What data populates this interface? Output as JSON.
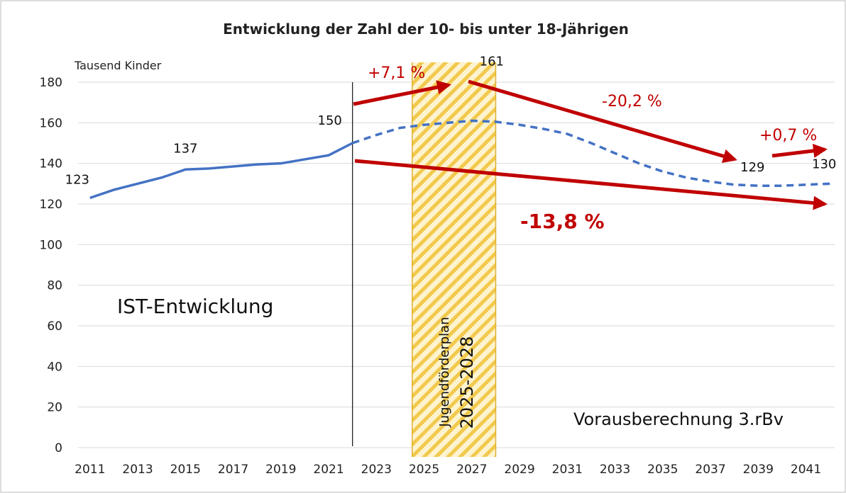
{
  "chart_data": {
    "type": "line",
    "title": "Entwicklung der Zahl der 10- bis unter 18-Jährigen",
    "y_axis_label": "Tausend Kinder",
    "x": [
      2011,
      2012,
      2013,
      2014,
      2015,
      2016,
      2017,
      2018,
      2019,
      2020,
      2021,
      2022,
      2023,
      2024,
      2025,
      2026,
      2027,
      2028,
      2029,
      2030,
      2031,
      2032,
      2033,
      2034,
      2035,
      2036,
      2037,
      2038,
      2039,
      2040,
      2041,
      2042
    ],
    "series": [
      {
        "name": "IST-Entwicklung",
        "color": "#4472c4",
        "line_style": "solid",
        "values": [
          123,
          127,
          130,
          133,
          137,
          137.5,
          138.5,
          139.5,
          140,
          142,
          144,
          150,
          null,
          null,
          null,
          null,
          null,
          null,
          null,
          null,
          null,
          null,
          null,
          null,
          null,
          null,
          null,
          null,
          null,
          null,
          null,
          null
        ]
      },
      {
        "name": "Vorausberechnung 3.rBv",
        "color": "#4472c4",
        "line_style": "dashed",
        "values": [
          null,
          null,
          null,
          null,
          null,
          null,
          null,
          null,
          null,
          null,
          null,
          150,
          154,
          157.5,
          159,
          160,
          161,
          160.5,
          159,
          157,
          154.5,
          150,
          145,
          140,
          136,
          133,
          131,
          129.5,
          129,
          129,
          129.5,
          130
        ]
      }
    ],
    "xlim": [
      2010.5,
      2042.5
    ],
    "xticks": [
      2011,
      2013,
      2015,
      2017,
      2019,
      2021,
      2023,
      2025,
      2027,
      2029,
      2031,
      2033,
      2035,
      2037,
      2039,
      2041
    ],
    "ylim": [
      0,
      180
    ],
    "yticks": [
      0,
      20,
      40,
      60,
      80,
      100,
      120,
      140,
      160,
      180
    ],
    "grid": true,
    "highlight_x": [
      2024.5,
      2028
    ],
    "highlight_label": "Jugendförderplan",
    "highlight_period": "2025-2028",
    "divider_x": 2022,
    "annotations": [
      "+7,1 %",
      "-20,2 %",
      "+0,7 %",
      "-13,8 %"
    ]
  }
}
